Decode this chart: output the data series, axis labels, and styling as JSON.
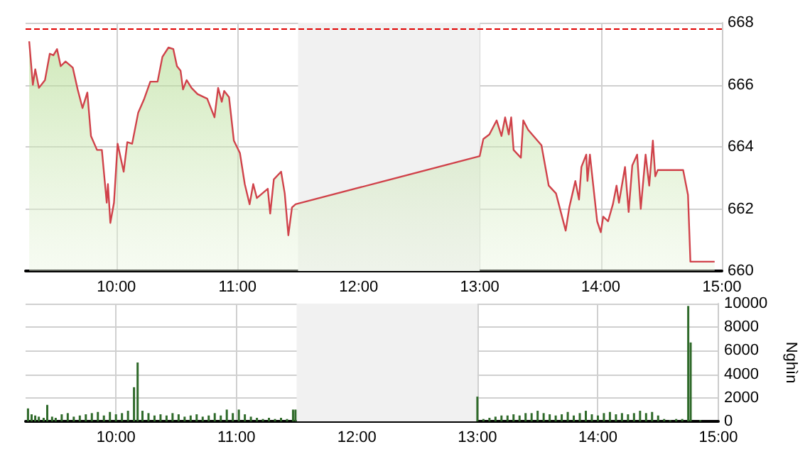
{
  "chart_data": [
    {
      "type": "area",
      "xlim": [
        9.25,
        15
      ],
      "xticks": [
        {
          "value": 10,
          "label": "10:00"
        },
        {
          "value": 11,
          "label": "11:00"
        },
        {
          "value": 12,
          "label": "12:00"
        },
        {
          "value": 13,
          "label": "13:00"
        },
        {
          "value": 14,
          "label": "14:00"
        },
        {
          "value": 15,
          "label": "15:00"
        }
      ],
      "ylim": [
        660,
        668
      ],
      "yticks": [
        660,
        662,
        664,
        666,
        668
      ],
      "grid": true,
      "ref_lines": [
        {
          "axis": "y",
          "value": 667.8,
          "color": "#e00000",
          "line_style": "dashed"
        }
      ],
      "bands": [
        {
          "axis": "x",
          "from": 11.5,
          "to": 13,
          "color": "#f1f1f1"
        }
      ],
      "series": [
        {
          "color": "#d0424a",
          "x": [
            9.28,
            9.31,
            9.33,
            9.36,
            9.41,
            9.45,
            9.48,
            9.51,
            9.54,
            9.58,
            9.64,
            9.68,
            9.72,
            9.76,
            9.79,
            9.84,
            9.88,
            9.92,
            9.93,
            9.95,
            9.98,
            10.01,
            10.06,
            10.09,
            10.13,
            10.18,
            10.23,
            10.28,
            10.34,
            10.38,
            10.43,
            10.47,
            10.5,
            10.53,
            10.55,
            10.58,
            10.62,
            10.67,
            10.75,
            10.81,
            10.84,
            10.87,
            10.89,
            10.93,
            10.97,
            11.02,
            11.06,
            11.1,
            11.13,
            11.16,
            11.25,
            11.27,
            11.3,
            11.36,
            11.39,
            11.42,
            11.45,
            11.48,
            13.0,
            13.03,
            13.08,
            13.14,
            13.18,
            13.21,
            13.24,
            13.26,
            13.28,
            13.34,
            13.36,
            13.4,
            13.51,
            13.57,
            13.63,
            13.71,
            13.74,
            13.79,
            13.82,
            13.84,
            13.88,
            13.89,
            13.91,
            13.97,
            14.0,
            14.02,
            14.06,
            14.1,
            14.13,
            14.15,
            14.2,
            14.23,
            14.26,
            14.3,
            14.33,
            14.37,
            14.4,
            14.43,
            14.45,
            14.47,
            14.68,
            14.72,
            14.74,
            14.94
          ],
          "values": [
            667.4,
            666.0,
            666.5,
            665.9,
            666.15,
            667.0,
            666.95,
            667.15,
            666.6,
            666.75,
            666.55,
            665.85,
            665.25,
            665.75,
            664.35,
            663.9,
            663.9,
            662.2,
            662.8,
            661.55,
            662.2,
            664.1,
            663.2,
            664.15,
            664.1,
            665.1,
            665.55,
            666.1,
            666.1,
            666.9,
            667.2,
            667.15,
            666.6,
            666.45,
            665.85,
            666.15,
            665.9,
            665.7,
            665.55,
            664.95,
            665.9,
            665.45,
            665.8,
            665.6,
            664.2,
            663.8,
            662.8,
            662.15,
            662.8,
            662.35,
            662.65,
            661.85,
            662.95,
            663.2,
            662.5,
            661.15,
            662.05,
            662.15,
            663.7,
            664.25,
            664.4,
            664.85,
            664.35,
            664.95,
            664.4,
            664.95,
            663.9,
            663.65,
            664.85,
            664.55,
            664.05,
            662.75,
            662.5,
            661.3,
            662.05,
            662.9,
            662.3,
            663.35,
            663.75,
            662.9,
            663.75,
            661.6,
            661.25,
            661.75,
            661.6,
            662.15,
            662.75,
            662.2,
            663.35,
            661.9,
            663.4,
            663.75,
            662.0,
            663.75,
            662.75,
            664.2,
            663.05,
            663.25,
            663.25,
            662.45,
            660.3,
            660.3
          ]
        }
      ]
    },
    {
      "type": "bar",
      "xlim": [
        9.25,
        15
      ],
      "xticks": [
        {
          "value": 10,
          "label": "10:00"
        },
        {
          "value": 11,
          "label": "11:00"
        },
        {
          "value": 12,
          "label": "12:00"
        },
        {
          "value": 13,
          "label": "13:00"
        },
        {
          "value": 14,
          "label": "14:00"
        },
        {
          "value": 15,
          "label": "15:00"
        }
      ],
      "ylim": [
        0,
        10000
      ],
      "yticks": [
        0,
        2000,
        4000,
        6000,
        8000,
        10000
      ],
      "ylabel": "Nghìn",
      "grid": true,
      "bands": [
        {
          "axis": "x",
          "from": 11.5,
          "to": 13,
          "color": "#f1f1f1"
        }
      ],
      "series": [
        {
          "color": "#2f6a2a",
          "x": [
            9.27,
            9.3,
            9.33,
            9.36,
            9.4,
            9.43,
            9.47,
            9.5,
            9.55,
            9.6,
            9.65,
            9.7,
            9.75,
            9.8,
            9.85,
            9.9,
            9.95,
            10.0,
            10.05,
            10.1,
            10.15,
            10.18,
            10.22,
            10.27,
            10.32,
            10.37,
            10.42,
            10.47,
            10.52,
            10.57,
            10.62,
            10.67,
            10.72,
            10.77,
            10.82,
            10.87,
            10.92,
            10.97,
            11.02,
            11.07,
            11.12,
            11.17,
            11.22,
            11.27,
            11.32,
            11.37,
            11.42,
            11.47,
            11.49,
            13.0,
            13.05,
            13.1,
            13.15,
            13.2,
            13.25,
            13.3,
            13.35,
            13.4,
            13.45,
            13.5,
            13.55,
            13.6,
            13.65,
            13.7,
            13.75,
            13.8,
            13.85,
            13.9,
            13.95,
            14.0,
            14.05,
            14.1,
            14.15,
            14.2,
            14.25,
            14.3,
            14.35,
            14.4,
            14.45,
            14.5,
            14.55,
            14.6,
            14.65,
            14.7,
            14.75,
            14.77,
            14.85
          ],
          "values": [
            1100,
            600,
            500,
            400,
            300,
            1400,
            400,
            300,
            600,
            700,
            400,
            500,
            600,
            700,
            800,
            500,
            800,
            600,
            700,
            900,
            2900,
            5000,
            900,
            700,
            500,
            600,
            500,
            700,
            600,
            400,
            500,
            600,
            400,
            500,
            700,
            500,
            1000,
            700,
            1000,
            600,
            400,
            300,
            200,
            300,
            200,
            300,
            200,
            1000,
            1000,
            2100,
            200,
            300,
            400,
            500,
            500,
            600,
            500,
            700,
            700,
            900,
            700,
            600,
            500,
            600,
            800,
            500,
            700,
            900,
            600,
            500,
            700,
            800,
            600,
            700,
            600,
            700,
            900,
            700,
            800,
            500,
            200,
            100,
            200,
            200,
            9800,
            6700,
            100
          ]
        }
      ]
    }
  ]
}
